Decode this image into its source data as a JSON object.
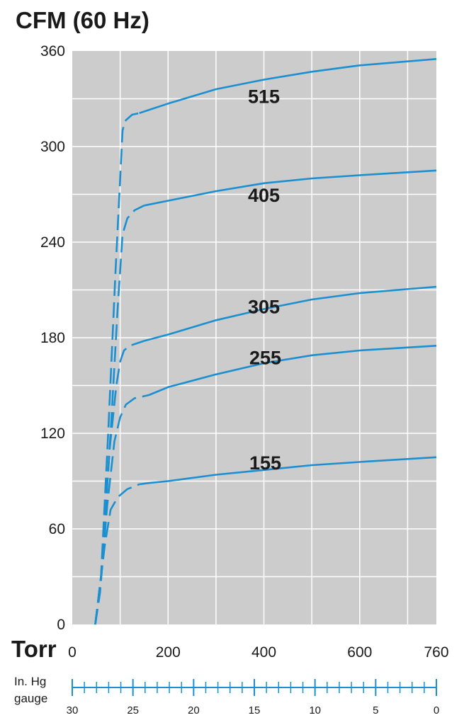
{
  "chart_data": {
    "type": "line",
    "title": "CFM (60 Hz)",
    "xlabel": "Torr",
    "xlim": [
      0,
      760
    ],
    "ylim": [
      0,
      360
    ],
    "x_ticks": [
      0,
      200,
      400,
      600,
      760
    ],
    "y_ticks": [
      0,
      60,
      120,
      180,
      240,
      300,
      360
    ],
    "grid": true,
    "secondary_axis": {
      "label_line1": "In. Hg",
      "label_line2": "gauge",
      "ticks": [
        30,
        25,
        20,
        15,
        10,
        5,
        0
      ]
    },
    "series": [
      {
        "name": "515",
        "points": [
          [
            48,
            0
          ],
          [
            60,
            30
          ],
          [
            75,
            120
          ],
          [
            90,
            220
          ],
          [
            105,
            310
          ],
          [
            110,
            316
          ],
          [
            125,
            320
          ],
          [
            140,
            321
          ],
          [
            150,
            322
          ],
          [
            200,
            327
          ],
          [
            300,
            336
          ],
          [
            400,
            342
          ],
          [
            500,
            347
          ],
          [
            600,
            351
          ],
          [
            760,
            355
          ]
        ]
      },
      {
        "name": "405",
        "points": [
          [
            48,
            0
          ],
          [
            62,
            35
          ],
          [
            80,
            120
          ],
          [
            95,
            200
          ],
          [
            105,
            245
          ],
          [
            115,
            255
          ],
          [
            130,
            260
          ],
          [
            150,
            263
          ],
          [
            200,
            266
          ],
          [
            300,
            272
          ],
          [
            400,
            277
          ],
          [
            500,
            280
          ],
          [
            600,
            282
          ],
          [
            760,
            285
          ]
        ]
      },
      {
        "name": "305",
        "points": [
          [
            48,
            0
          ],
          [
            60,
            30
          ],
          [
            78,
            110
          ],
          [
            92,
            150
          ],
          [
            100,
            165
          ],
          [
            108,
            172
          ],
          [
            120,
            175
          ],
          [
            150,
            178
          ],
          [
            200,
            182
          ],
          [
            300,
            191
          ],
          [
            400,
            198
          ],
          [
            500,
            204
          ],
          [
            600,
            208
          ],
          [
            760,
            212
          ]
        ]
      },
      {
        "name": "255",
        "points": [
          [
            48,
            0
          ],
          [
            58,
            20
          ],
          [
            73,
            75
          ],
          [
            88,
            115
          ],
          [
            100,
            130
          ],
          [
            112,
            138
          ],
          [
            130,
            142
          ],
          [
            160,
            144
          ],
          [
            200,
            149
          ],
          [
            300,
            157
          ],
          [
            400,
            164
          ],
          [
            500,
            169
          ],
          [
            600,
            172
          ],
          [
            760,
            175
          ]
        ]
      },
      {
        "name": "155",
        "points": [
          [
            48,
            0
          ],
          [
            56,
            20
          ],
          [
            68,
            50
          ],
          [
            80,
            72
          ],
          [
            95,
            80
          ],
          [
            115,
            85
          ],
          [
            140,
            88
          ],
          [
            165,
            89
          ],
          [
            200,
            90
          ],
          [
            300,
            94
          ],
          [
            400,
            97
          ],
          [
            500,
            100
          ],
          [
            600,
            102
          ],
          [
            760,
            105
          ]
        ]
      }
    ],
    "colors": {
      "line": "#1b8fd0",
      "plot_bg": "#cccccc",
      "grid": "#ffffff",
      "text": "#1a1a1a"
    }
  }
}
